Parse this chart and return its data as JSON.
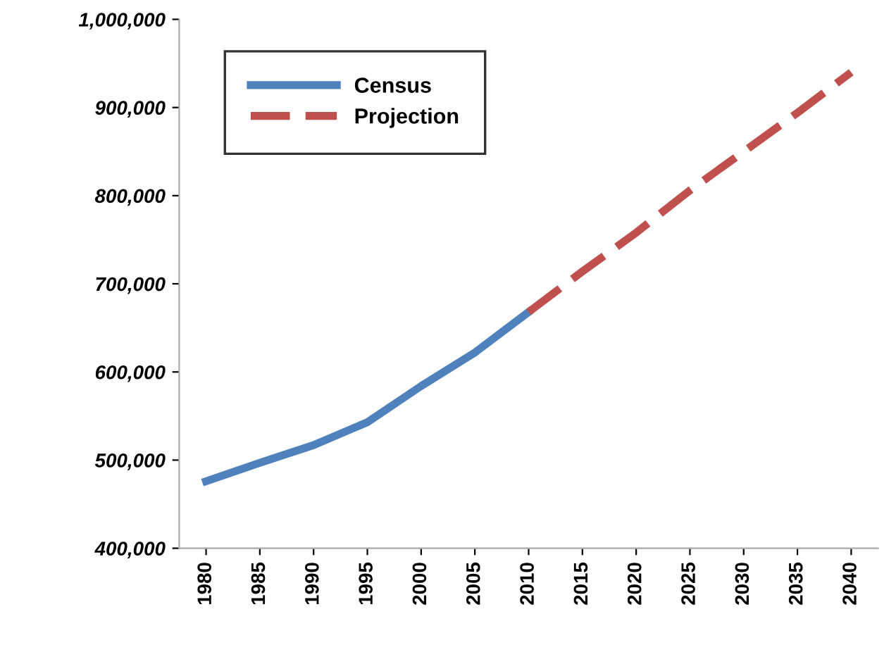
{
  "chart_data": {
    "type": "line",
    "categories": [
      "1980",
      "1985",
      "1990",
      "1995",
      "2000",
      "2005",
      "2010",
      "2015",
      "2020",
      "2025",
      "2030",
      "2035",
      "2040"
    ],
    "series": [
      {
        "name": "Census",
        "color": "#4f81bd",
        "line_style": "solid",
        "values": [
          476000,
          497000,
          517000,
          543000,
          584000,
          622000,
          668000,
          null,
          null,
          null,
          null,
          null,
          null
        ]
      },
      {
        "name": "Projection",
        "color": "#c0504d",
        "line_style": "dashed",
        "values": [
          null,
          null,
          null,
          null,
          null,
          null,
          668000,
          714000,
          758000,
          806000,
          850000,
          894000,
          940000
        ]
      }
    ],
    "ylim": [
      400000,
      1000000
    ],
    "yticks": [
      {
        "value": 400000,
        "label": "400,000"
      },
      {
        "value": 500000,
        "label": "500,000"
      },
      {
        "value": 600000,
        "label": "600,000"
      },
      {
        "value": 700000,
        "label": "700,000"
      },
      {
        "value": 800000,
        "label": "800,000"
      },
      {
        "value": 900000,
        "label": "900,000"
      },
      {
        "value": 1000000,
        "label": "1,000,000"
      }
    ],
    "grid": false,
    "legend": "top left",
    "marker": "none"
  }
}
